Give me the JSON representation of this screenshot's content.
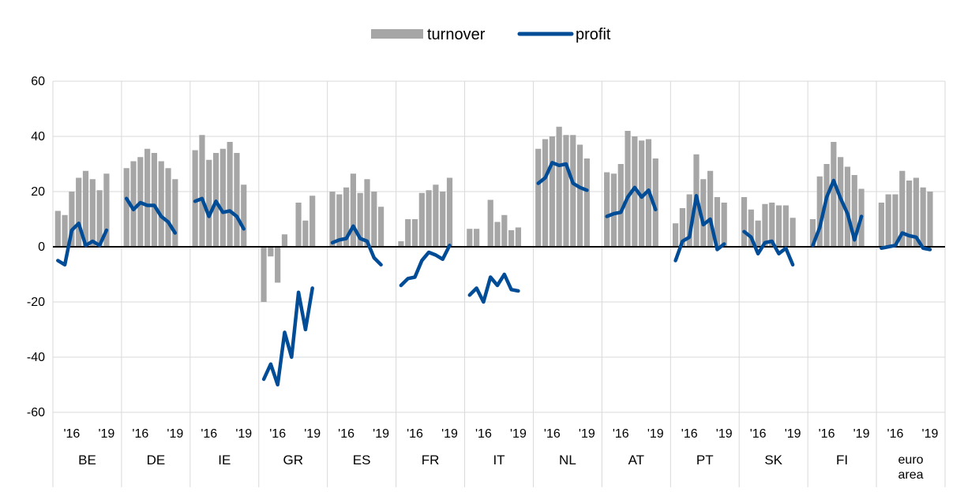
{
  "chart_data": {
    "type": "bar",
    "title": "",
    "xlabel": "",
    "ylabel": "",
    "ylim": [
      -60,
      60
    ],
    "y_ticks": [
      "60",
      "40",
      "20",
      "0",
      "-20",
      "-40",
      "-60"
    ],
    "grid": true,
    "legend_position": "top-center",
    "year_ticks": [
      "'16",
      "'19"
    ],
    "colors": {
      "turnover": "#a6a6a6",
      "profit": "#004c97",
      "grid": "#d9d9d9",
      "zero_line": "#000000"
    },
    "legend": [
      {
        "name": "turnover",
        "kind": "bar"
      },
      {
        "name": "profit",
        "kind": "line"
      }
    ],
    "countries": [
      {
        "label": [
          "BE"
        ],
        "turnover": [
          13,
          11.5,
          20,
          25,
          27.5,
          24.5,
          20.5,
          26.5
        ],
        "profit": [
          -5,
          -6.5,
          6,
          8.5,
          0.5,
          2,
          0.5,
          6
        ]
      },
      {
        "label": [
          "DE"
        ],
        "turnover": [
          28.5,
          31,
          32.5,
          35.5,
          34,
          31,
          28.5,
          24.5
        ],
        "profit": [
          17.5,
          13.5,
          16,
          15,
          15,
          11,
          9,
          5
        ]
      },
      {
        "label": [
          "IE"
        ],
        "turnover": [
          35,
          40.5,
          31.5,
          34,
          35.5,
          38,
          34,
          22.5
        ],
        "profit": [
          16.5,
          17.5,
          11,
          16.5,
          12.5,
          13,
          11,
          6.5
        ]
      },
      {
        "label": [
          "GR"
        ],
        "turnover": [
          -20,
          -3.5,
          -13,
          4.5,
          null,
          16,
          9.5,
          18.5
        ],
        "profit": [
          -48,
          -42.5,
          -50,
          -31,
          -40,
          -16.5,
          -30,
          -15
        ]
      },
      {
        "label": [
          "ES"
        ],
        "turnover": [
          20,
          19,
          21.5,
          26.5,
          19.5,
          24.5,
          20,
          14.5
        ],
        "profit": [
          1.5,
          2.5,
          3,
          7.5,
          3,
          2,
          -4,
          -6.5
        ]
      },
      {
        "label": [
          "FR"
        ],
        "turnover": [
          2,
          10,
          10,
          19.5,
          20.5,
          22.5,
          20,
          25
        ],
        "profit": [
          -14,
          -11.5,
          -11,
          -5,
          -2,
          -3,
          -4.5,
          0.5
        ]
      },
      {
        "label": [
          "IT"
        ],
        "turnover": [
          6.5,
          6.5,
          null,
          17,
          9,
          11.5,
          6,
          7
        ],
        "profit": [
          -17.5,
          -15,
          -20,
          -11,
          -14,
          -10,
          -15.5,
          -16
        ]
      },
      {
        "label": [
          "NL"
        ],
        "turnover": [
          35.5,
          39,
          40,
          43.5,
          40.5,
          40.5,
          37,
          32
        ],
        "profit": [
          23,
          25,
          30.5,
          29.5,
          30,
          23,
          21.5,
          20.5
        ]
      },
      {
        "label": [
          "AT"
        ],
        "turnover": [
          27,
          26.5,
          30,
          42,
          40,
          38.5,
          39,
          32
        ],
        "profit": [
          11,
          12,
          12.5,
          18,
          21.5,
          18,
          20.5,
          13.5
        ]
      },
      {
        "label": [
          "PT"
        ],
        "turnover": [
          8.5,
          14,
          19,
          33.5,
          24.5,
          27.5,
          18,
          16
        ],
        "profit": [
          -5,
          2,
          3.5,
          18.5,
          8,
          10,
          -1,
          1
        ]
      },
      {
        "label": [
          "SK"
        ],
        "turnover": [
          18,
          13.5,
          9.5,
          15.5,
          16,
          15,
          15,
          10.5
        ],
        "profit": [
          5.5,
          3.5,
          -2.5,
          1.5,
          2,
          -2.5,
          -0.5,
          -6.5
        ]
      },
      {
        "label": [
          "FI"
        ],
        "turnover": [
          10,
          25.5,
          30,
          38,
          32.5,
          29,
          26,
          21
        ],
        "profit": [
          0.5,
          7,
          18,
          24,
          17.5,
          12,
          2.5,
          11
        ]
      },
      {
        "label": [
          "euro",
          "area"
        ],
        "turnover": [
          16,
          19,
          19,
          27.5,
          24,
          25,
          21.5,
          20
        ],
        "profit": [
          -0.5,
          0,
          0.5,
          5,
          4,
          3.5,
          -0.5,
          -1
        ]
      }
    ]
  }
}
